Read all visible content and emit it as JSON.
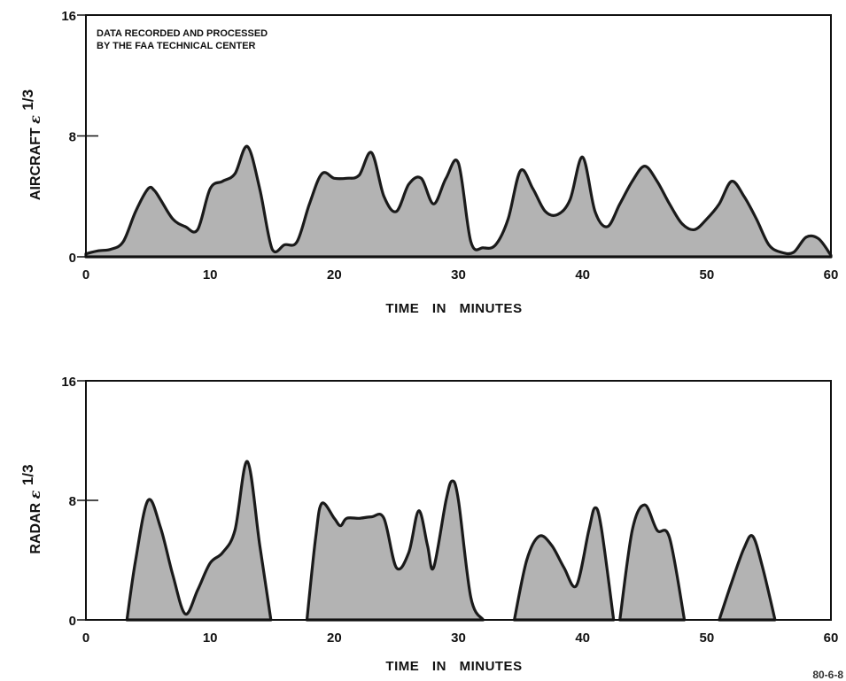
{
  "chart_data": [
    {
      "type": "area",
      "annotation": [
        "DATA RECORDED AND PROCESSED",
        "BY THE FAA TECHNICAL CENTER"
      ],
      "xlabel": "TIME IN MINUTES",
      "ylabel": "AIRCRAFT ε 1/3",
      "ylabel_text": "AIRCRAFT",
      "ylabel_symbol": "ε",
      "ylabel_exponent": "1/3",
      "xlim": [
        0,
        60
      ],
      "ylim": [
        0,
        16
      ],
      "xticks": [
        0,
        10,
        20,
        30,
        40,
        50,
        60
      ],
      "yticks": [
        0,
        8,
        16
      ],
      "fill_color": "#b3b3b3",
      "series": [
        {
          "x": [
            0,
            1,
            2,
            3,
            4,
            5,
            5.5,
            6,
            7,
            8,
            9,
            10,
            11,
            12,
            13,
            14,
            15,
            16,
            17,
            18,
            19,
            20,
            21,
            22,
            23,
            24,
            25,
            26,
            27,
            28,
            29,
            30,
            31,
            32,
            33,
            34,
            35,
            36,
            37,
            38,
            39,
            40,
            41,
            42,
            43,
            44,
            45,
            46,
            47,
            48,
            49,
            50,
            51,
            52,
            53,
            54,
            55,
            56,
            57,
            58,
            59,
            60
          ],
          "values": [
            0.2,
            0.4,
            0.5,
            1.0,
            3.0,
            4.5,
            4.4,
            3.8,
            2.5,
            2.0,
            1.8,
            4.5,
            5.0,
            5.5,
            7.3,
            4.5,
            0.5,
            0.8,
            1.0,
            3.5,
            5.5,
            5.2,
            5.2,
            5.4,
            6.9,
            4.0,
            3.0,
            4.8,
            5.2,
            3.5,
            5.2,
            6.2,
            1.0,
            0.6,
            0.8,
            2.5,
            5.7,
            4.5,
            3.0,
            2.8,
            3.8,
            6.6,
            3.0,
            2.0,
            3.5,
            5.0,
            6.0,
            5.0,
            3.5,
            2.2,
            1.8,
            2.5,
            3.5,
            5.0,
            4.0,
            2.5,
            0.8,
            0.3,
            0.3,
            1.3,
            1.2,
            0.1
          ]
        }
      ]
    },
    {
      "type": "area",
      "xlabel": "TIME IN MINUTES",
      "ylabel": "RADAR ε 1/3",
      "ylabel_text": "RADAR",
      "ylabel_symbol": "ε",
      "ylabel_exponent": "1/3",
      "xlim": [
        0,
        60
      ],
      "ylim": [
        0,
        16
      ],
      "xticks": [
        0,
        10,
        20,
        30,
        40,
        50,
        60
      ],
      "yticks": [
        0,
        8,
        16
      ],
      "fill_color": "#b3b3b3",
      "series": [
        {
          "segments": [
            {
              "x": [
                3.3,
                4,
                5,
                6,
                7,
                8,
                9,
                10,
                11,
                12,
                13,
                14,
                14.9
              ],
              "values": [
                0,
                4.0,
                8.0,
                6.2,
                3.0,
                0.4,
                2.0,
                3.8,
                4.5,
                6.0,
                10.6,
                5.0,
                0
              ]
            },
            {
              "x": [
                17.8,
                18.5,
                19,
                20,
                20.5,
                21,
                22,
                23,
                24,
                25,
                26,
                26.8,
                27.5,
                28,
                29,
                29.5,
                30,
                31,
                32
              ],
              "values": [
                0,
                5.5,
                7.8,
                6.8,
                6.3,
                6.8,
                6.8,
                6.9,
                6.8,
                3.5,
                4.5,
                7.3,
                5.0,
                3.5,
                8.0,
                9.3,
                8.0,
                1.5,
                0
              ]
            },
            {
              "x": [
                34.5,
                35.5,
                36.5,
                37.5,
                38.5,
                39.5,
                40.5,
                41,
                41.5,
                42.5
              ],
              "values": [
                0,
                4.0,
                5.6,
                5.0,
                3.5,
                2.3,
                6.0,
                7.5,
                6.2,
                0
              ]
            },
            {
              "x": [
                43,
                44,
                45,
                46,
                47,
                48.2
              ],
              "values": [
                0,
                6.0,
                7.7,
                6.0,
                5.5,
                0
              ]
            },
            {
              "x": [
                51,
                52,
                53,
                53.7,
                54.5,
                55.5
              ],
              "values": [
                0,
                2.5,
                4.8,
                5.6,
                3.5,
                0
              ]
            }
          ]
        }
      ]
    }
  ],
  "corner_note": "80-6-8"
}
